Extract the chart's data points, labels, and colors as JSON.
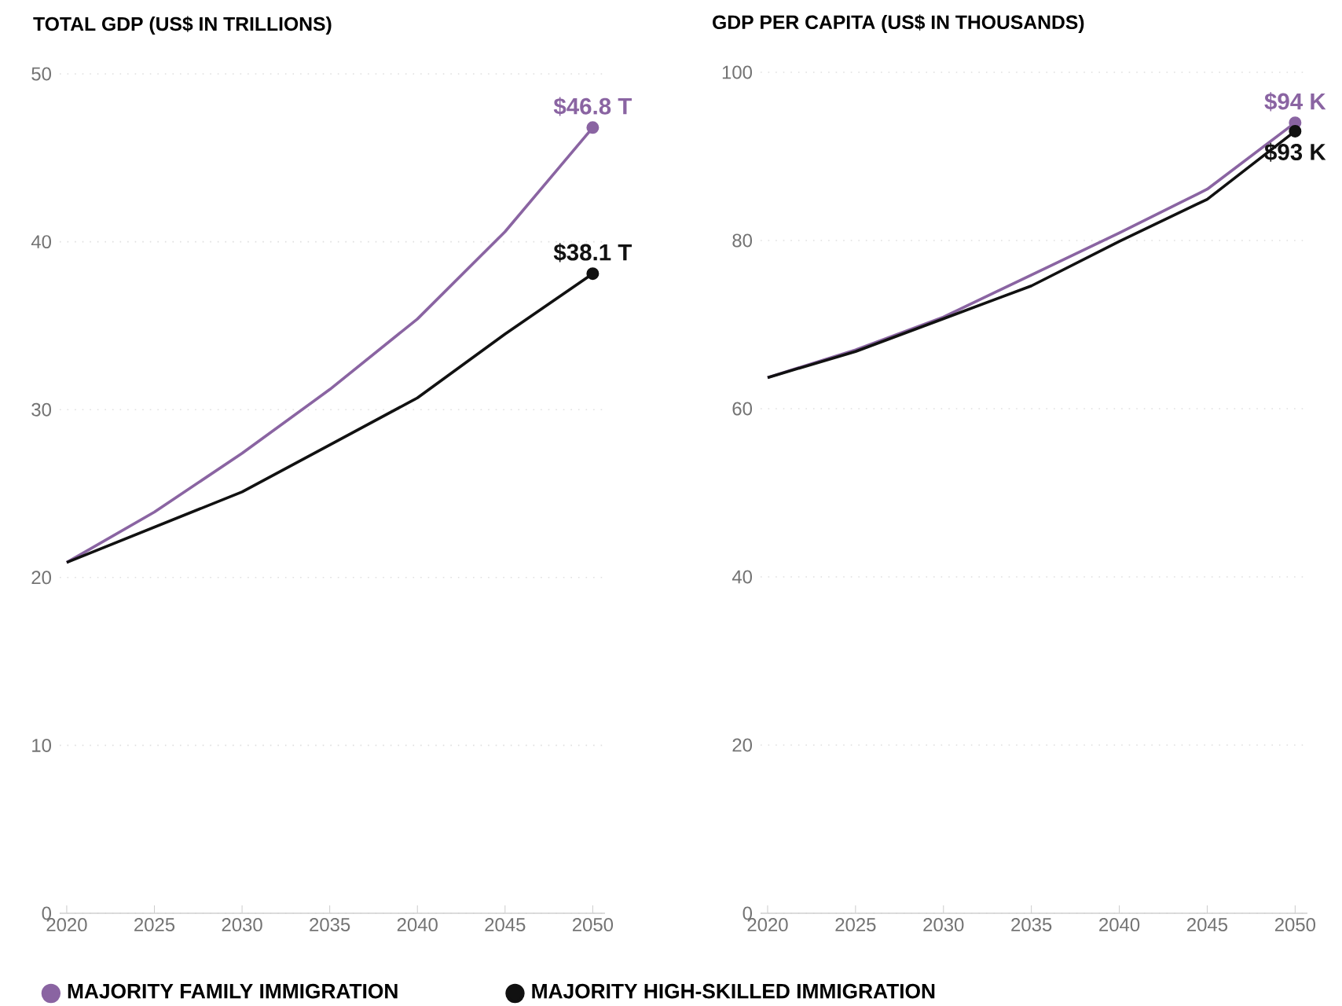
{
  "chart_data": [
    {
      "type": "line",
      "title": "TOTAL GDP (US$ IN TRILLIONS)",
      "x": [
        2020,
        2025,
        2030,
        2035,
        2040,
        2045,
        2050
      ],
      "series": [
        {
          "name": "MAJORITY FAMILY IMMIGRATION",
          "color": "#8a64a2",
          "values": [
            20.9,
            23.9,
            27.4,
            31.2,
            35.4,
            40.6,
            46.8
          ],
          "value_labels": [
            null,
            null,
            null,
            null,
            null,
            null,
            "$46.8 T"
          ]
        },
        {
          "name": "MAJORITY HIGH-SKILLED IMMIGRATION",
          "color": "#111111",
          "values": [
            20.9,
            23.0,
            25.1,
            27.9,
            30.7,
            34.5,
            38.1
          ],
          "value_labels": [
            null,
            null,
            null,
            null,
            null,
            null,
            "$38.1 T"
          ]
        }
      ],
      "xlim": [
        2019.6,
        2050.7
      ],
      "xticks": [
        2020,
        2025,
        2030,
        2035,
        2040,
        2045,
        2050
      ],
      "ylim": [
        0,
        50
      ],
      "yticks": [
        0,
        10,
        20,
        30,
        40,
        50
      ],
      "grid": "y",
      "legend": "bottom"
    },
    {
      "type": "line",
      "title": "GDP PER CAPITA (US$ IN THOUSANDS)",
      "x": [
        2020,
        2025,
        2030,
        2035,
        2040,
        2045,
        2050
      ],
      "series": [
        {
          "color": "#8a64a2",
          "values": [
            63.7,
            67.0,
            70.9,
            75.9,
            80.9,
            86.1,
            94
          ],
          "value_labels": [
            null,
            null,
            null,
            null,
            null,
            null,
            "$94 K"
          ]
        },
        {
          "color": "#111111",
          "values": [
            63.7,
            66.8,
            70.7,
            74.6,
            79.9,
            84.9,
            93
          ],
          "value_labels": [
            null,
            null,
            null,
            null,
            null,
            null,
            "$93 K"
          ]
        }
      ],
      "xlim": [
        2019.6,
        2050.7
      ],
      "xticks": [
        2020,
        2025,
        2030,
        2035,
        2040,
        2045,
        2050
      ],
      "ylim": [
        0,
        100
      ],
      "yticks": [
        0,
        20,
        40,
        60,
        80,
        100
      ],
      "grid": "y"
    }
  ]
}
